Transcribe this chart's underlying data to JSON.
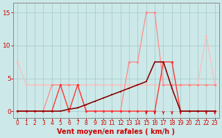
{
  "background_color": "#cce8e8",
  "grid_color": "#aacccc",
  "xlabel": "Vent moyen/en rafales ( km/h )",
  "xlim": [
    -0.5,
    23.5
  ],
  "ylim": [
    -1.0,
    16.5
  ],
  "yticks": [
    0,
    5,
    10,
    15
  ],
  "xticks": [
    0,
    1,
    2,
    3,
    4,
    5,
    6,
    7,
    8,
    9,
    10,
    11,
    12,
    13,
    14,
    15,
    16,
    17,
    18,
    19,
    20,
    21,
    22,
    23
  ],
  "series": [
    {
      "label": "lightest_pink_diagonal",
      "x": [
        0,
        1,
        2,
        3,
        4,
        5,
        6,
        7,
        8,
        9,
        10,
        11,
        12,
        13,
        14,
        15,
        16,
        17,
        18,
        19,
        20,
        21,
        22,
        23
      ],
      "y": [
        7.5,
        4,
        4,
        4,
        4,
        4,
        4,
        4,
        4,
        4,
        4,
        4,
        4,
        4,
        4,
        4,
        4,
        4,
        4,
        4,
        4,
        4,
        11.5,
        4
      ],
      "color": "#ffbbbb",
      "marker": "o",
      "markersize": 2.5,
      "linewidth": 0.9
    },
    {
      "label": "medium_pink_flat",
      "x": [
        0,
        1,
        2,
        3,
        4,
        5,
        6,
        7,
        8,
        9,
        10,
        11,
        12,
        13,
        14,
        15,
        16,
        17,
        18,
        19,
        20,
        21,
        22,
        23
      ],
      "y": [
        0,
        0,
        0,
        0,
        4,
        4,
        4,
        4,
        0,
        0,
        0,
        0,
        0,
        7.5,
        7.5,
        15,
        15,
        4,
        4,
        4,
        4,
        4,
        4,
        4
      ],
      "color": "#ff8888",
      "marker": "o",
      "markersize": 2.5,
      "linewidth": 0.9
    },
    {
      "label": "bright_red_triangle",
      "x": [
        0,
        1,
        2,
        3,
        4,
        5,
        6,
        7,
        8,
        9,
        10,
        11,
        12,
        13,
        14,
        15,
        16,
        17,
        18,
        19,
        20,
        21,
        22,
        23
      ],
      "y": [
        0,
        0,
        0,
        0,
        0,
        4,
        0,
        4,
        0,
        0,
        0,
        0,
        0,
        0,
        0,
        0,
        0,
        7.5,
        7.5,
        0,
        0,
        0,
        0,
        0
      ],
      "color": "#ff3333",
      "marker": "o",
      "markersize": 2.5,
      "linewidth": 1.0
    },
    {
      "label": "dark_red_ramp",
      "x": [
        0,
        1,
        2,
        3,
        4,
        5,
        6,
        7,
        8,
        9,
        10,
        11,
        12,
        13,
        14,
        15,
        16,
        17,
        18,
        19,
        20,
        21,
        22,
        23
      ],
      "y": [
        0,
        0,
        0,
        0,
        0,
        0,
        0.3,
        0.5,
        1,
        1.5,
        2,
        2.5,
        3,
        3.5,
        4,
        4.5,
        7.5,
        7.5,
        3.5,
        0,
        0,
        0,
        0,
        0
      ],
      "color": "#880000",
      "marker": "s",
      "markersize": 2.0,
      "linewidth": 1.2
    }
  ],
  "arrows_x": [
    15,
    16,
    17,
    18,
    19,
    22,
    23
  ],
  "arrow_color": "#cc1111",
  "xlabel_color": "#cc0000",
  "xlabel_fontsize": 7,
  "tick_color": "#cc0000",
  "tick_fontsize": 5.5,
  "ytick_fontsize": 6.5,
  "spine_color": "#888888"
}
